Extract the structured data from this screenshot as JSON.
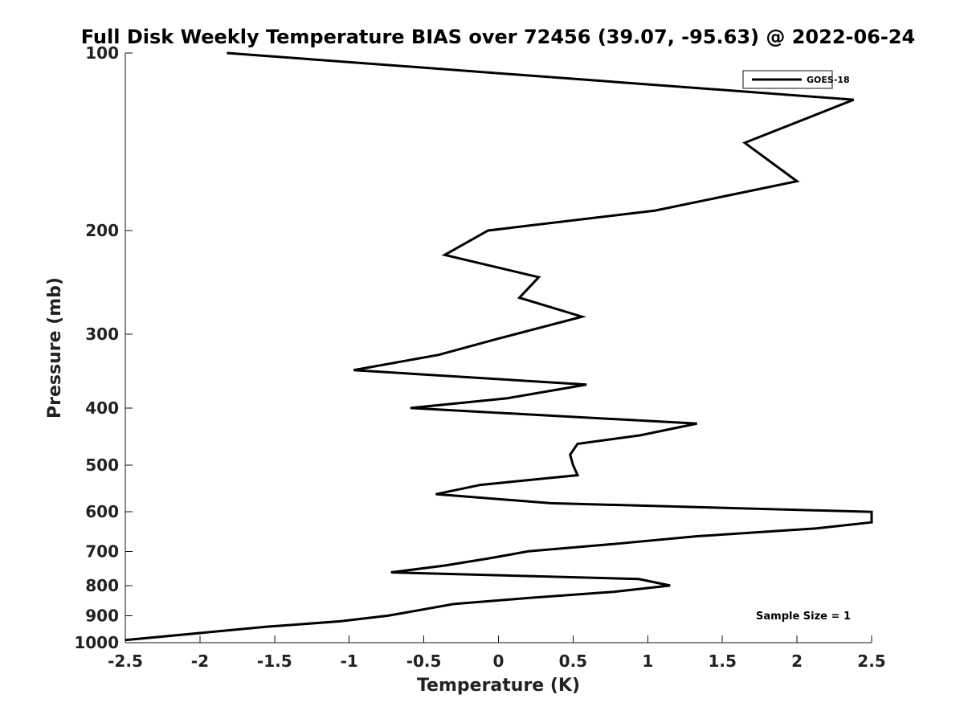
{
  "chart_data": {
    "type": "line",
    "title": "Full Disk Weekly Temperature BIAS over 72456 (39.07, -95.63) @ 2022-06-24",
    "xlabel": "Temperature (K)",
    "ylabel": "Pressure (mb)",
    "xlim": [
      -2.5,
      2.5
    ],
    "ylim": [
      1000,
      100
    ],
    "y_scale": "log",
    "grid": false,
    "legend_position": "top-right",
    "x_ticks": [
      -2.5,
      -2,
      -1.5,
      -1,
      -0.5,
      0,
      0.5,
      1,
      1.5,
      2,
      2.5
    ],
    "x_tick_labels": [
      "-2.5",
      "-2",
      "-1.5",
      "-1",
      "-0.5",
      "0",
      "0.5",
      "1",
      "1.5",
      "2",
      "2.5"
    ],
    "y_ticks": [
      100,
      200,
      300,
      400,
      500,
      600,
      700,
      800,
      900,
      1000
    ],
    "y_tick_labels": [
      "100",
      "200",
      "300",
      "400",
      "500",
      "600",
      "700",
      "800",
      "900",
      "1000"
    ],
    "series": [
      {
        "name": "GOES-18",
        "color": "#000000",
        "points": [
          {
            "x": -1.82,
            "p": 100
          },
          {
            "x": 2.38,
            "p": 120
          },
          {
            "x": 1.65,
            "p": 142
          },
          {
            "x": 2.0,
            "p": 165
          },
          {
            "x": 1.05,
            "p": 185
          },
          {
            "x": -0.07,
            "p": 200
          },
          {
            "x": -0.36,
            "p": 220
          },
          {
            "x": 0.27,
            "p": 240
          },
          {
            "x": 0.14,
            "p": 260
          },
          {
            "x": 0.56,
            "p": 280
          },
          {
            "x": 0.0,
            "p": 305
          },
          {
            "x": -0.4,
            "p": 325
          },
          {
            "x": -0.97,
            "p": 345
          },
          {
            "x": 0.59,
            "p": 365
          },
          {
            "x": 0.06,
            "p": 385
          },
          {
            "x": -0.59,
            "p": 400
          },
          {
            "x": 1.33,
            "p": 425
          },
          {
            "x": 0.95,
            "p": 445
          },
          {
            "x": 0.53,
            "p": 460
          },
          {
            "x": 0.48,
            "p": 480
          },
          {
            "x": 0.5,
            "p": 500
          },
          {
            "x": 0.53,
            "p": 520
          },
          {
            "x": -0.12,
            "p": 540
          },
          {
            "x": -0.42,
            "p": 560
          },
          {
            "x": 0.35,
            "p": 580
          },
          {
            "x": 2.5,
            "p": 600
          },
          {
            "x": 2.5,
            "p": 625
          },
          {
            "x": 2.13,
            "p": 640
          },
          {
            "x": 1.33,
            "p": 660
          },
          {
            "x": 0.78,
            "p": 680
          },
          {
            "x": 0.2,
            "p": 700
          },
          {
            "x": -0.07,
            "p": 720
          },
          {
            "x": -0.36,
            "p": 740
          },
          {
            "x": -0.72,
            "p": 760
          },
          {
            "x": 0.94,
            "p": 780
          },
          {
            "x": 1.15,
            "p": 800
          },
          {
            "x": 0.77,
            "p": 820
          },
          {
            "x": 0.2,
            "p": 840
          },
          {
            "x": -0.3,
            "p": 860
          },
          {
            "x": -0.74,
            "p": 900
          },
          {
            "x": -1.06,
            "p": 920
          },
          {
            "x": -1.56,
            "p": 940
          },
          {
            "x": -2.5,
            "p": 990
          }
        ]
      }
    ],
    "annotations": [
      "Sample Size = 1"
    ]
  }
}
